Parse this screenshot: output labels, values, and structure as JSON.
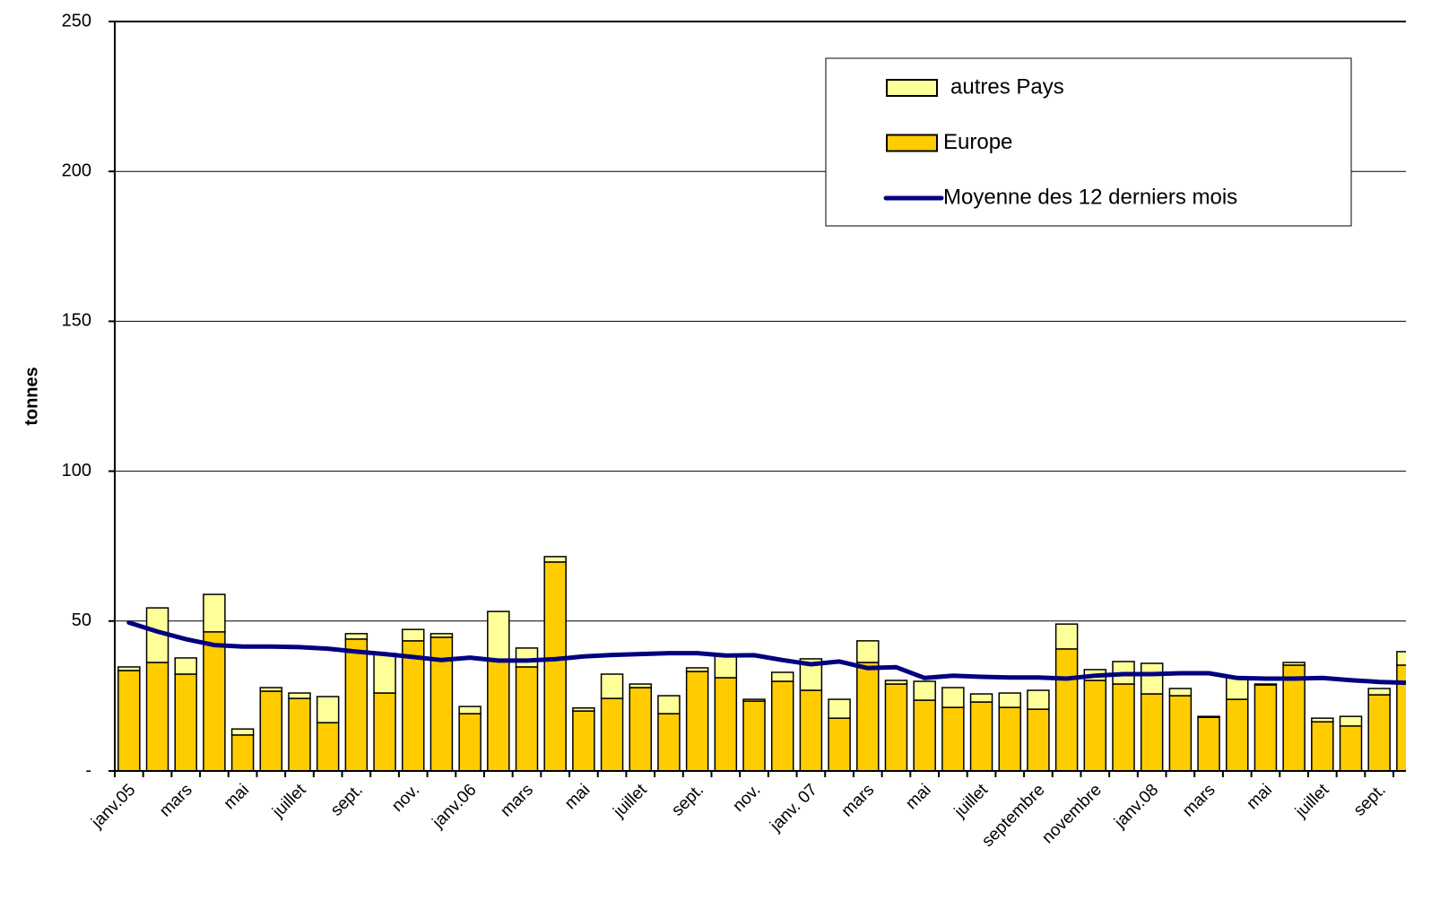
{
  "chart_data": {
    "type": "bar",
    "stacked": true,
    "y_label": "tonnes",
    "categories": [
      "janv.05",
      null,
      "mars",
      null,
      "mai",
      null,
      "juillet",
      null,
      "sept.",
      null,
      "nov.",
      null,
      "janv.06",
      null,
      "mars",
      null,
      "mai",
      null,
      "juillet",
      null,
      "sept.",
      null,
      "nov.",
      null,
      "janv. 07",
      null,
      "mars",
      null,
      "mai",
      null,
      "juillet",
      null,
      "septembre",
      null,
      "novembre",
      null,
      "janv.08",
      null,
      "mars",
      null,
      "mai",
      null,
      "juillet",
      null,
      "sept.",
      null
    ],
    "series": [
      {
        "name": "Europe",
        "color": "#ffcc00",
        "values": [
          33.5,
          36.2,
          32.3,
          46.4,
          12,
          26.6,
          24.2,
          16.1,
          44,
          26,
          43.4,
          44.6,
          19.1,
          37,
          34.7,
          69.7,
          20,
          24.2,
          27.8,
          19.1,
          33.2,
          31.1,
          23.3,
          29.9,
          26.9,
          17.6,
          36.2,
          29,
          23.6,
          21.2,
          23,
          21.2,
          20.6,
          40.7,
          30.2,
          29,
          25.7,
          25.1,
          17.9,
          23.9,
          28.7,
          35.3,
          16.4,
          15,
          25.4,
          35.3
        ]
      },
      {
        "name": "autres Pays",
        "color": "#ffff99",
        "values": [
          1.2,
          18.2,
          5.4,
          12.5,
          2,
          1.2,
          1.8,
          8.7,
          1.8,
          13.2,
          3.8,
          1.2,
          2.4,
          16.2,
          6.3,
          1.8,
          1,
          8.1,
          1.2,
          6,
          1.2,
          7.8,
          0.6,
          3,
          10.5,
          6.3,
          7.2,
          1.2,
          6.3,
          6.6,
          2.7,
          4.8,
          6.3,
          8.3,
          3.6,
          7.5,
          10.2,
          2.4,
          0.3,
          7.5,
          0.3,
          0.9,
          1.2,
          3.2,
          2.1,
          4.5
        ]
      },
      {
        "name": "Moyenne des 12 derniers mois",
        "type": "line",
        "color": "#000080",
        "values": [
          49.5,
          46.5,
          44,
          42,
          41.5,
          41.5,
          41.3,
          40.8,
          39.8,
          39,
          38,
          37,
          37.8,
          36.8,
          36.8,
          37.3,
          38.2,
          38.7,
          39,
          39.3,
          39.3,
          38.5,
          38.6,
          37,
          35.6,
          36.5,
          34.3,
          34.6,
          31,
          31.8,
          31.4,
          31.2,
          31.2,
          30.8,
          31.8,
          32.3,
          32.3,
          32.6,
          32.6,
          31,
          30.8,
          30.8,
          31,
          30.3,
          29.7,
          29.4
        ]
      }
    ],
    "ylim": [
      0,
      250
    ],
    "yticks": [
      {
        "value": 0,
        "label": "-"
      },
      50,
      100,
      150,
      200,
      250
    ],
    "grid": true,
    "legend": "top-right"
  }
}
